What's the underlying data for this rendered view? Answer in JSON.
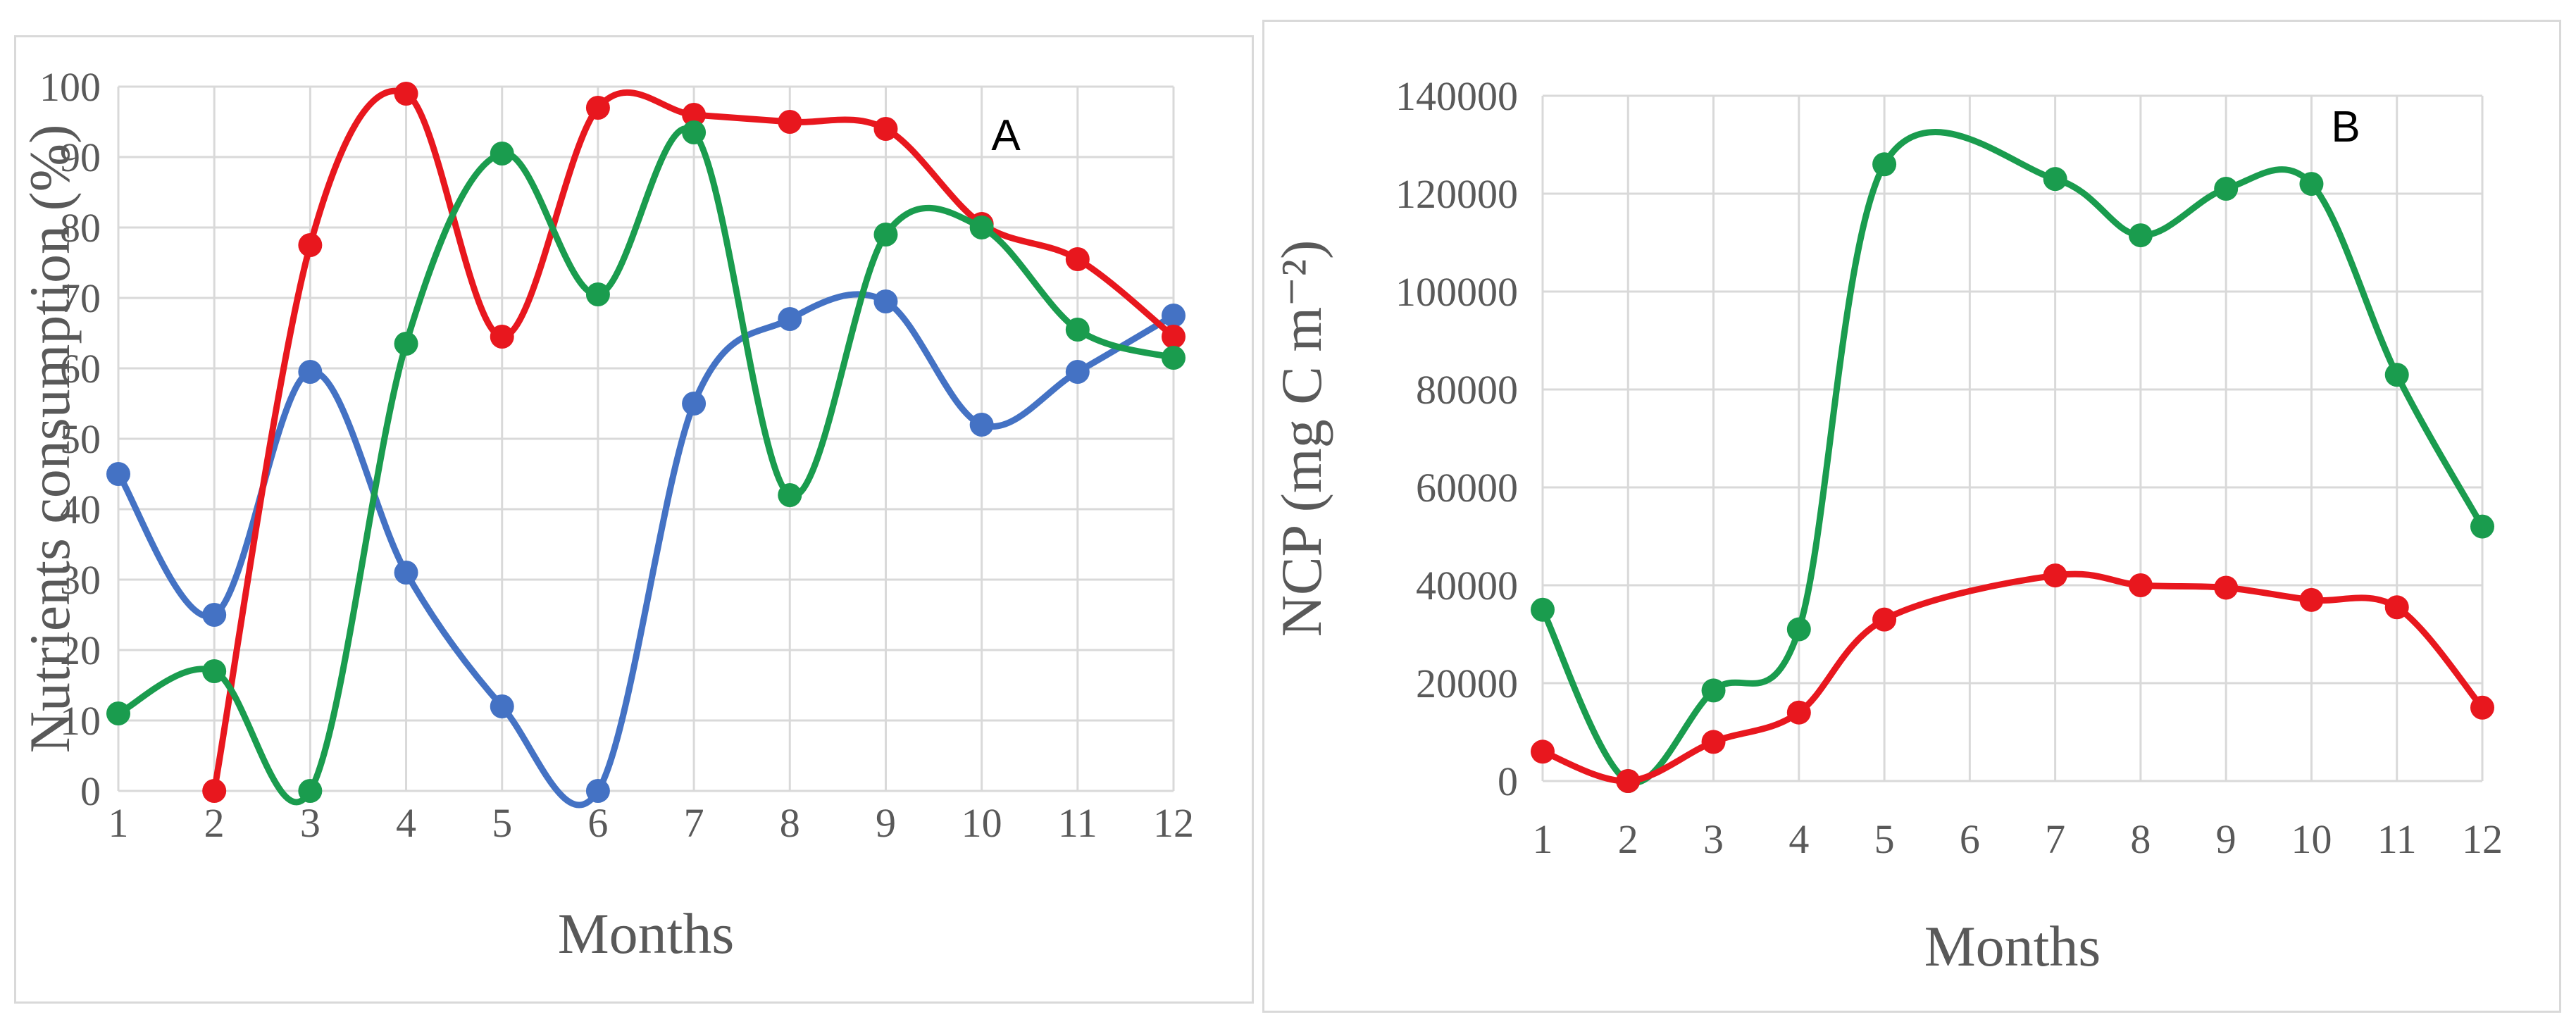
{
  "chart_data": [
    {
      "type": "line",
      "panel_label": "A",
      "title": "",
      "xlabel": "Months",
      "ylabel": "Nutrients consumption (%)",
      "xlim": [
        1,
        12
      ],
      "ylim": [
        0,
        100
      ],
      "x_ticks": [
        "1",
        "2",
        "3",
        "4",
        "5",
        "6",
        "7",
        "8",
        "9",
        "10",
        "11",
        "12"
      ],
      "y_ticks": [
        "0",
        "10",
        "20",
        "30",
        "40",
        "50",
        "60",
        "70",
        "80",
        "90",
        "100"
      ],
      "grid": true,
      "smooth": true,
      "series": [
        {
          "color": "#4472c4",
          "x": [
            1,
            2,
            3,
            4,
            5,
            6,
            7,
            8,
            9,
            10,
            11,
            12
          ],
          "y": [
            45,
            25,
            59.5,
            31,
            12,
            0,
            55,
            67,
            69.5,
            52,
            59.5,
            67.5
          ]
        },
        {
          "color": "#e8171e",
          "x": [
            2,
            3,
            4,
            5,
            6,
            7,
            8,
            9,
            10,
            11,
            12
          ],
          "y": [
            0,
            77.5,
            99,
            64.5,
            97,
            96,
            95,
            94,
            80.5,
            75.5,
            64.5
          ]
        },
        {
          "color": "#1a9c4e",
          "x": [
            1,
            2,
            3,
            4,
            5,
            6,
            7,
            8,
            9,
            10,
            11,
            12
          ],
          "y": [
            11,
            17,
            0,
            63.5,
            90.5,
            70.5,
            93.5,
            42,
            79,
            80,
            65.5,
            61.5
          ]
        }
      ]
    },
    {
      "type": "line",
      "panel_label": "B",
      "title": "",
      "xlabel": "Months",
      "ylabel": "NCP (mg C m⁻²)",
      "xlim": [
        1,
        12
      ],
      "ylim": [
        0,
        140000
      ],
      "x_ticks": [
        "1",
        "2",
        "3",
        "4",
        "5",
        "6",
        "7",
        "8",
        "9",
        "10",
        "11",
        "12"
      ],
      "y_ticks": [
        "0",
        "20000",
        "40000",
        "60000",
        "80000",
        "100000",
        "120000",
        "140000"
      ],
      "grid": true,
      "smooth": true,
      "series": [
        {
          "color": "#1a9c4e",
          "x": [
            1,
            2,
            3,
            4,
            5,
            7,
            8,
            9,
            10,
            11,
            12
          ],
          "y": [
            35000,
            0,
            18500,
            31000,
            126000,
            123000,
            111500,
            121000,
            122000,
            83000,
            52000
          ]
        },
        {
          "color": "#e8171e",
          "x": [
            1,
            2,
            3,
            4,
            5,
            7,
            8,
            9,
            10,
            11,
            12
          ],
          "y": [
            6000,
            0,
            8000,
            14000,
            33000,
            42000,
            40000,
            39500,
            37000,
            35500,
            15000
          ]
        }
      ]
    }
  ]
}
